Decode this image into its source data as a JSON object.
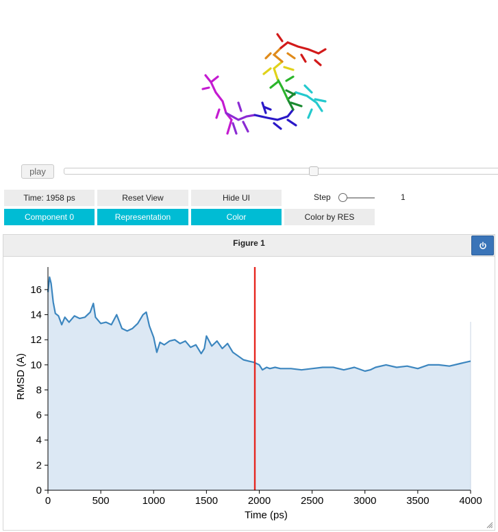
{
  "player": {
    "play_label": "play",
    "frame_fraction": 0.57
  },
  "controls": {
    "time_label": "Time: 1958 ps",
    "reset_view_label": "Reset View",
    "hide_ui_label": "Hide UI",
    "step_label": "Step",
    "step_value": "1",
    "component_label": "Component 0",
    "representation_label": "Representation",
    "color_label": "Color",
    "color_by_res_label": "Color by RES"
  },
  "figure": {
    "title": "Figure 1",
    "power_icon": "power-icon"
  },
  "colors": {
    "accent": "#00bcd4",
    "line": "#3c86bf",
    "fill": "#dce8f4",
    "marker": "#e6261f",
    "power": "#3a74b8"
  },
  "chart_data": {
    "type": "area",
    "xlabel": "Time (ps)",
    "ylabel": "RMSD (A)",
    "xlim": [
      0,
      4000
    ],
    "ylim": [
      0,
      17.8
    ],
    "xticks": [
      0,
      500,
      1000,
      1500,
      2000,
      2500,
      3000,
      3500,
      4000
    ],
    "yticks": [
      0,
      2,
      4,
      6,
      8,
      10,
      12,
      14,
      16
    ],
    "marker_x": 1958,
    "series": [
      {
        "x": [
          0,
          15,
          30,
          50,
          70,
          100,
          130,
          160,
          200,
          250,
          300,
          350,
          400,
          430,
          450,
          500,
          550,
          600,
          650,
          700,
          750,
          800,
          850,
          900,
          930,
          960,
          1000,
          1030,
          1060,
          1100,
          1150,
          1200,
          1250,
          1300,
          1350,
          1400,
          1450,
          1480,
          1500,
          1550,
          1600,
          1650,
          1700,
          1750,
          1800,
          1850,
          1900,
          1950,
          2000,
          2030,
          2070,
          2100,
          2150,
          2200,
          2300,
          2400,
          2500,
          2600,
          2700,
          2800,
          2900,
          3000,
          3050,
          3100,
          3200,
          3300,
          3400,
          3500,
          3600,
          3700,
          3800,
          3900,
          3950,
          4000
        ],
        "y": [
          15.8,
          17.0,
          16.5,
          15.0,
          14.1,
          13.9,
          13.2,
          13.8,
          13.4,
          13.9,
          13.7,
          13.8,
          14.2,
          14.9,
          13.8,
          13.3,
          13.4,
          13.2,
          14.0,
          12.9,
          12.7,
          12.9,
          13.3,
          14.0,
          14.2,
          13.1,
          12.2,
          11.0,
          11.8,
          11.6,
          11.9,
          12.0,
          11.7,
          11.9,
          11.4,
          11.6,
          10.9,
          11.3,
          12.3,
          11.5,
          11.9,
          11.3,
          11.7,
          11.0,
          10.7,
          10.4,
          10.3,
          10.2,
          10.0,
          9.6,
          9.8,
          9.7,
          9.8,
          9.7,
          9.7,
          9.6,
          9.7,
          9.8,
          9.8,
          9.6,
          9.8,
          9.5,
          9.6,
          9.8,
          10.0,
          9.8,
          9.9,
          9.7,
          10.0,
          10.0,
          9.9,
          10.1,
          10.2,
          10.3
        ]
      }
    ]
  }
}
